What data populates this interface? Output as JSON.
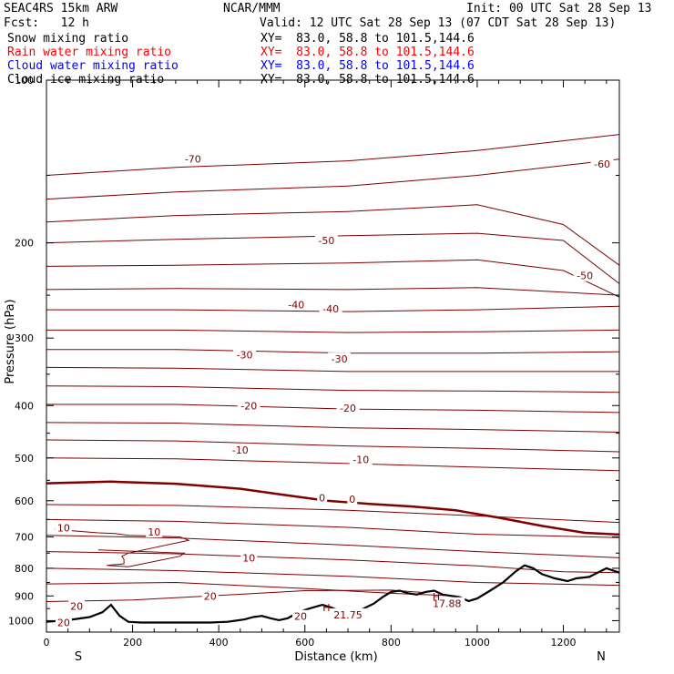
{
  "header": {
    "model": "SEAC4RS 15km ARW",
    "center": "NCAR/MMM",
    "init": "Init: 00 UTC Sat 28 Sep 13",
    "fcst": "Fcst:   12 h",
    "valid": "Valid: 12 UTC Sat 28 Sep 13 (07 CDT Sat 28 Sep 13)"
  },
  "fields": [
    {
      "label": "Snow mixing ratio",
      "xy": "XY=  83.0, 58.8 to 101.5,144.6",
      "color": "#000000"
    },
    {
      "label": "Rain water mixing ratio",
      "xy": "XY=  83.0, 58.8 to 101.5,144.6",
      "color": "#ff0000"
    },
    {
      "label": "Cloud water mixing ratio",
      "xy": "XY=  83.0, 58.8 to 101.5,144.6",
      "color": "#0000ff"
    },
    {
      "label": "Cloud ice mixing ratio",
      "xy": "XY=  83.0, 58.8 to 101.5,144.6",
      "color": "#000000"
    }
  ],
  "colors": {
    "contour": "#800000",
    "terrain": "#000000",
    "frame": "#000000"
  },
  "chart_data": {
    "type": "line",
    "xlabel": "Distance (km)",
    "ylabel": "Pressure (hPa)",
    "xlim": [
      0,
      1330
    ],
    "ylim": [
      1050,
      100
    ],
    "y_scale": "log",
    "xticks": [
      0,
      200,
      400,
      600,
      800,
      1000,
      1200
    ],
    "xtick_labels": [
      "0",
      "200",
      "400",
      "600",
      "800",
      "1000",
      "1200"
    ],
    "yticks": [
      100,
      200,
      300,
      400,
      500,
      600,
      700,
      800,
      900,
      1000
    ],
    "ytick_labels": [
      "100",
      "200",
      "300",
      "400",
      "500",
      "600",
      "700",
      "800",
      "900",
      "1000"
    ],
    "end_labels": {
      "left": "S",
      "right": "N"
    },
    "zero_isotherm": [
      [
        0,
        557
      ],
      [
        150,
        553
      ],
      [
        300,
        558
      ],
      [
        450,
        570
      ],
      [
        550,
        585
      ],
      [
        650,
        600
      ],
      [
        750,
        608
      ],
      [
        850,
        615
      ],
      [
        950,
        625
      ],
      [
        1050,
        645
      ],
      [
        1150,
        668
      ],
      [
        1250,
        688
      ],
      [
        1330,
        693
      ]
    ],
    "isotherms": [
      [
        [
          0,
          150
        ],
        [
          300,
          145
        ],
        [
          700,
          141
        ],
        [
          1000,
          135
        ],
        [
          1330,
          126
        ]
      ],
      [
        [
          0,
          166
        ],
        [
          300,
          161
        ],
        [
          700,
          157
        ],
        [
          1000,
          150
        ],
        [
          1330,
          140
        ]
      ],
      [
        [
          0,
          183
        ],
        [
          300,
          178
        ],
        [
          700,
          175
        ],
        [
          1000,
          170
        ],
        [
          1200,
          185
        ],
        [
          1330,
          220
        ]
      ],
      [
        [
          0,
          200
        ],
        [
          300,
          197
        ],
        [
          700,
          194
        ],
        [
          1000,
          192
        ],
        [
          1200,
          198
        ],
        [
          1330,
          238
        ]
      ],
      [
        [
          0,
          221
        ],
        [
          300,
          220
        ],
        [
          700,
          218
        ],
        [
          1000,
          215
        ],
        [
          1200,
          225
        ],
        [
          1330,
          252
        ]
      ],
      [
        [
          0,
          244
        ],
        [
          300,
          243
        ],
        [
          700,
          244
        ],
        [
          1000,
          242
        ],
        [
          1330,
          250
        ]
      ],
      [
        [
          0,
          266
        ],
        [
          300,
          266
        ],
        [
          700,
          268
        ],
        [
          1000,
          266
        ],
        [
          1330,
          262
        ]
      ],
      [
        [
          0,
          290
        ],
        [
          300,
          290
        ],
        [
          700,
          293
        ],
        [
          1000,
          292
        ],
        [
          1330,
          290
        ]
      ],
      [
        [
          0,
          315
        ],
        [
          300,
          315
        ],
        [
          700,
          320
        ],
        [
          1000,
          320
        ],
        [
          1330,
          318
        ]
      ],
      [
        [
          0,
          340
        ],
        [
          300,
          341
        ],
        [
          700,
          346
        ],
        [
          1000,
          346
        ],
        [
          1330,
          346
        ]
      ],
      [
        [
          0,
          368
        ],
        [
          300,
          369
        ],
        [
          700,
          375
        ],
        [
          1000,
          376
        ],
        [
          1330,
          378
        ]
      ],
      [
        [
          0,
          398
        ],
        [
          300,
          398
        ],
        [
          700,
          406
        ],
        [
          1000,
          408
        ],
        [
          1330,
          412
        ]
      ],
      [
        [
          0,
          430
        ],
        [
          300,
          431
        ],
        [
          700,
          440
        ],
        [
          1000,
          443
        ],
        [
          1330,
          448
        ]
      ],
      [
        [
          0,
          463
        ],
        [
          300,
          465
        ],
        [
          700,
          475
        ],
        [
          1000,
          480
        ],
        [
          1330,
          487
        ]
      ],
      [
        [
          0,
          500
        ],
        [
          300,
          502
        ],
        [
          700,
          512
        ],
        [
          1000,
          520
        ],
        [
          1330,
          528
        ]
      ],
      [
        [
          0,
          610
        ],
        [
          300,
          612
        ],
        [
          700,
          625
        ],
        [
          1000,
          640
        ],
        [
          1330,
          658
        ]
      ],
      [
        [
          0,
          650
        ],
        [
          300,
          655
        ],
        [
          700,
          672
        ],
        [
          1000,
          692
        ],
        [
          1330,
          702
        ]
      ],
      [
        [
          0,
          695
        ],
        [
          300,
          703
        ],
        [
          700,
          725
        ],
        [
          1000,
          745
        ],
        [
          1250,
          760
        ],
        [
          1330,
          765
        ]
      ],
      [
        [
          0,
          745
        ],
        [
          300,
          752
        ],
        [
          700,
          772
        ],
        [
          1000,
          792
        ],
        [
          1200,
          812
        ],
        [
          1330,
          815
        ]
      ],
      [
        [
          0,
          800
        ],
        [
          300,
          808
        ],
        [
          700,
          828
        ],
        [
          1000,
          850
        ],
        [
          1330,
          860
        ]
      ],
      [
        [
          0,
          855
        ],
        [
          300,
          850
        ],
        [
          600,
          872
        ],
        [
          800,
          890
        ],
        [
          950,
          900
        ]
      ],
      [
        [
          0,
          922
        ],
        [
          200,
          916
        ],
        [
          400,
          898
        ],
        [
          600,
          880
        ],
        [
          800,
          878
        ],
        [
          880,
          888
        ]
      ]
    ],
    "warm_lobe": [
      [
        20,
        678
      ],
      [
        120,
        688
      ],
      [
        160,
        690
      ],
      [
        190,
        695
      ],
      [
        310,
        700
      ],
      [
        330,
        710
      ],
      [
        190,
        750
      ],
      [
        175,
        760
      ],
      [
        180,
        770
      ],
      [
        180,
        785
      ],
      [
        140,
        790
      ],
      [
        190,
        795
      ],
      [
        310,
        760
      ],
      [
        320,
        750
      ],
      [
        120,
        740
      ]
    ],
    "terrain": [
      [
        0,
        1005
      ],
      [
        50,
        998
      ],
      [
        100,
        985
      ],
      [
        130,
        965
      ],
      [
        150,
        935
      ],
      [
        170,
        980
      ],
      [
        190,
        1005
      ],
      [
        220,
        1008
      ],
      [
        300,
        1008
      ],
      [
        380,
        1008
      ],
      [
        420,
        1005
      ],
      [
        460,
        995
      ],
      [
        480,
        985
      ],
      [
        500,
        980
      ],
      [
        520,
        990
      ],
      [
        540,
        998
      ],
      [
        560,
        990
      ],
      [
        580,
        970
      ],
      [
        600,
        955
      ],
      [
        620,
        945
      ],
      [
        640,
        935
      ],
      [
        660,
        945
      ],
      [
        680,
        958
      ],
      [
        700,
        960
      ],
      [
        730,
        955
      ],
      [
        760,
        930
      ],
      [
        780,
        905
      ],
      [
        800,
        885
      ],
      [
        820,
        880
      ],
      [
        840,
        890
      ],
      [
        860,
        895
      ],
      [
        880,
        885
      ],
      [
        900,
        880
      ],
      [
        920,
        895
      ],
      [
        960,
        905
      ],
      [
        980,
        920
      ],
      [
        1000,
        910
      ],
      [
        1030,
        880
      ],
      [
        1060,
        850
      ],
      [
        1090,
        810
      ],
      [
        1110,
        790
      ],
      [
        1130,
        800
      ],
      [
        1150,
        820
      ],
      [
        1180,
        835
      ],
      [
        1210,
        845
      ],
      [
        1230,
        835
      ],
      [
        1260,
        830
      ],
      [
        1300,
        800
      ],
      [
        1330,
        815
      ]
    ],
    "labels": [
      {
        "text": "-70",
        "x": 340,
        "p": 140
      },
      {
        "text": "-60",
        "x": 1290,
        "p": 143
      },
      {
        "text": "-50",
        "x": 650,
        "p": 198
      },
      {
        "text": "-50",
        "x": 1250,
        "p": 230
      },
      {
        "text": "-40",
        "x": 580,
        "p": 260
      },
      {
        "text": "-40",
        "x": 660,
        "p": 265
      },
      {
        "text": "-30",
        "x": 460,
        "p": 322
      },
      {
        "text": "-30",
        "x": 680,
        "p": 328
      },
      {
        "text": "-20",
        "x": 470,
        "p": 400
      },
      {
        "text": "-20",
        "x": 700,
        "p": 404
      },
      {
        "text": "-10",
        "x": 450,
        "p": 483
      },
      {
        "text": "-10",
        "x": 730,
        "p": 503
      },
      {
        "text": "0",
        "x": 640,
        "p": 592
      },
      {
        "text": "0",
        "x": 710,
        "p": 596
      },
      {
        "text": "10",
        "x": 40,
        "p": 673
      },
      {
        "text": "10",
        "x": 250,
        "p": 685
      },
      {
        "text": "10",
        "x": 470,
        "p": 765
      },
      {
        "text": "20",
        "x": 70,
        "p": 940
      },
      {
        "text": "20",
        "x": 380,
        "p": 900
      },
      {
        "text": "20",
        "x": 590,
        "p": 982
      },
      {
        "text": "20",
        "x": 40,
        "p": 1008
      },
      {
        "text": "21.75",
        "x": 700,
        "p": 975
      },
      {
        "text": "17.88",
        "x": 930,
        "p": 930
      }
    ],
    "h_markers": [
      {
        "text": "H",
        "x": 650,
        "p": 945
      },
      {
        "text": "H",
        "x": 905,
        "p": 902
      }
    ]
  }
}
